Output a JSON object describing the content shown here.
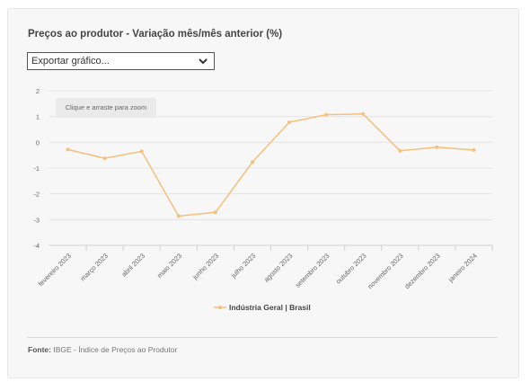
{
  "header": {
    "title": "Preços ao produtor - Variação mês/mês anterior (%)"
  },
  "export": {
    "label": "Exportar gráfico...",
    "icon": "chevron-down-icon"
  },
  "zoom_hint": "Clique e arraste para zoom",
  "legend": {
    "label": "Indústria Geral | Brasil",
    "color": "#f5c07a"
  },
  "footer": {
    "source_label": "Fonte:",
    "source_text": "IBGE - Índice de Preços ao Produtor"
  },
  "chart_data": {
    "type": "line",
    "categories": [
      "fevereiro 2023",
      "março 2023",
      "abril 2023",
      "maio 2023",
      "junho 2023",
      "julho 2023",
      "agosto 2023",
      "setembro 2023",
      "outubro 2023",
      "novembro 2023",
      "dezembro 2023",
      "janeiro 2024"
    ],
    "series": [
      {
        "name": "Indústria Geral | Brasil",
        "values": [
          -0.28,
          -0.62,
          -0.35,
          -2.86,
          -2.72,
          -0.77,
          0.78,
          1.07,
          1.1,
          -0.33,
          -0.19,
          -0.3
        ],
        "color": "#f5c07a"
      }
    ],
    "title": "Preços ao produtor - Variação mês/mês anterior (%)",
    "ylim": [
      -4,
      2
    ],
    "yticks": [
      -4,
      -3,
      -2,
      -1,
      0,
      1,
      2
    ],
    "grid": true,
    "legend_position": "bottom-center"
  }
}
